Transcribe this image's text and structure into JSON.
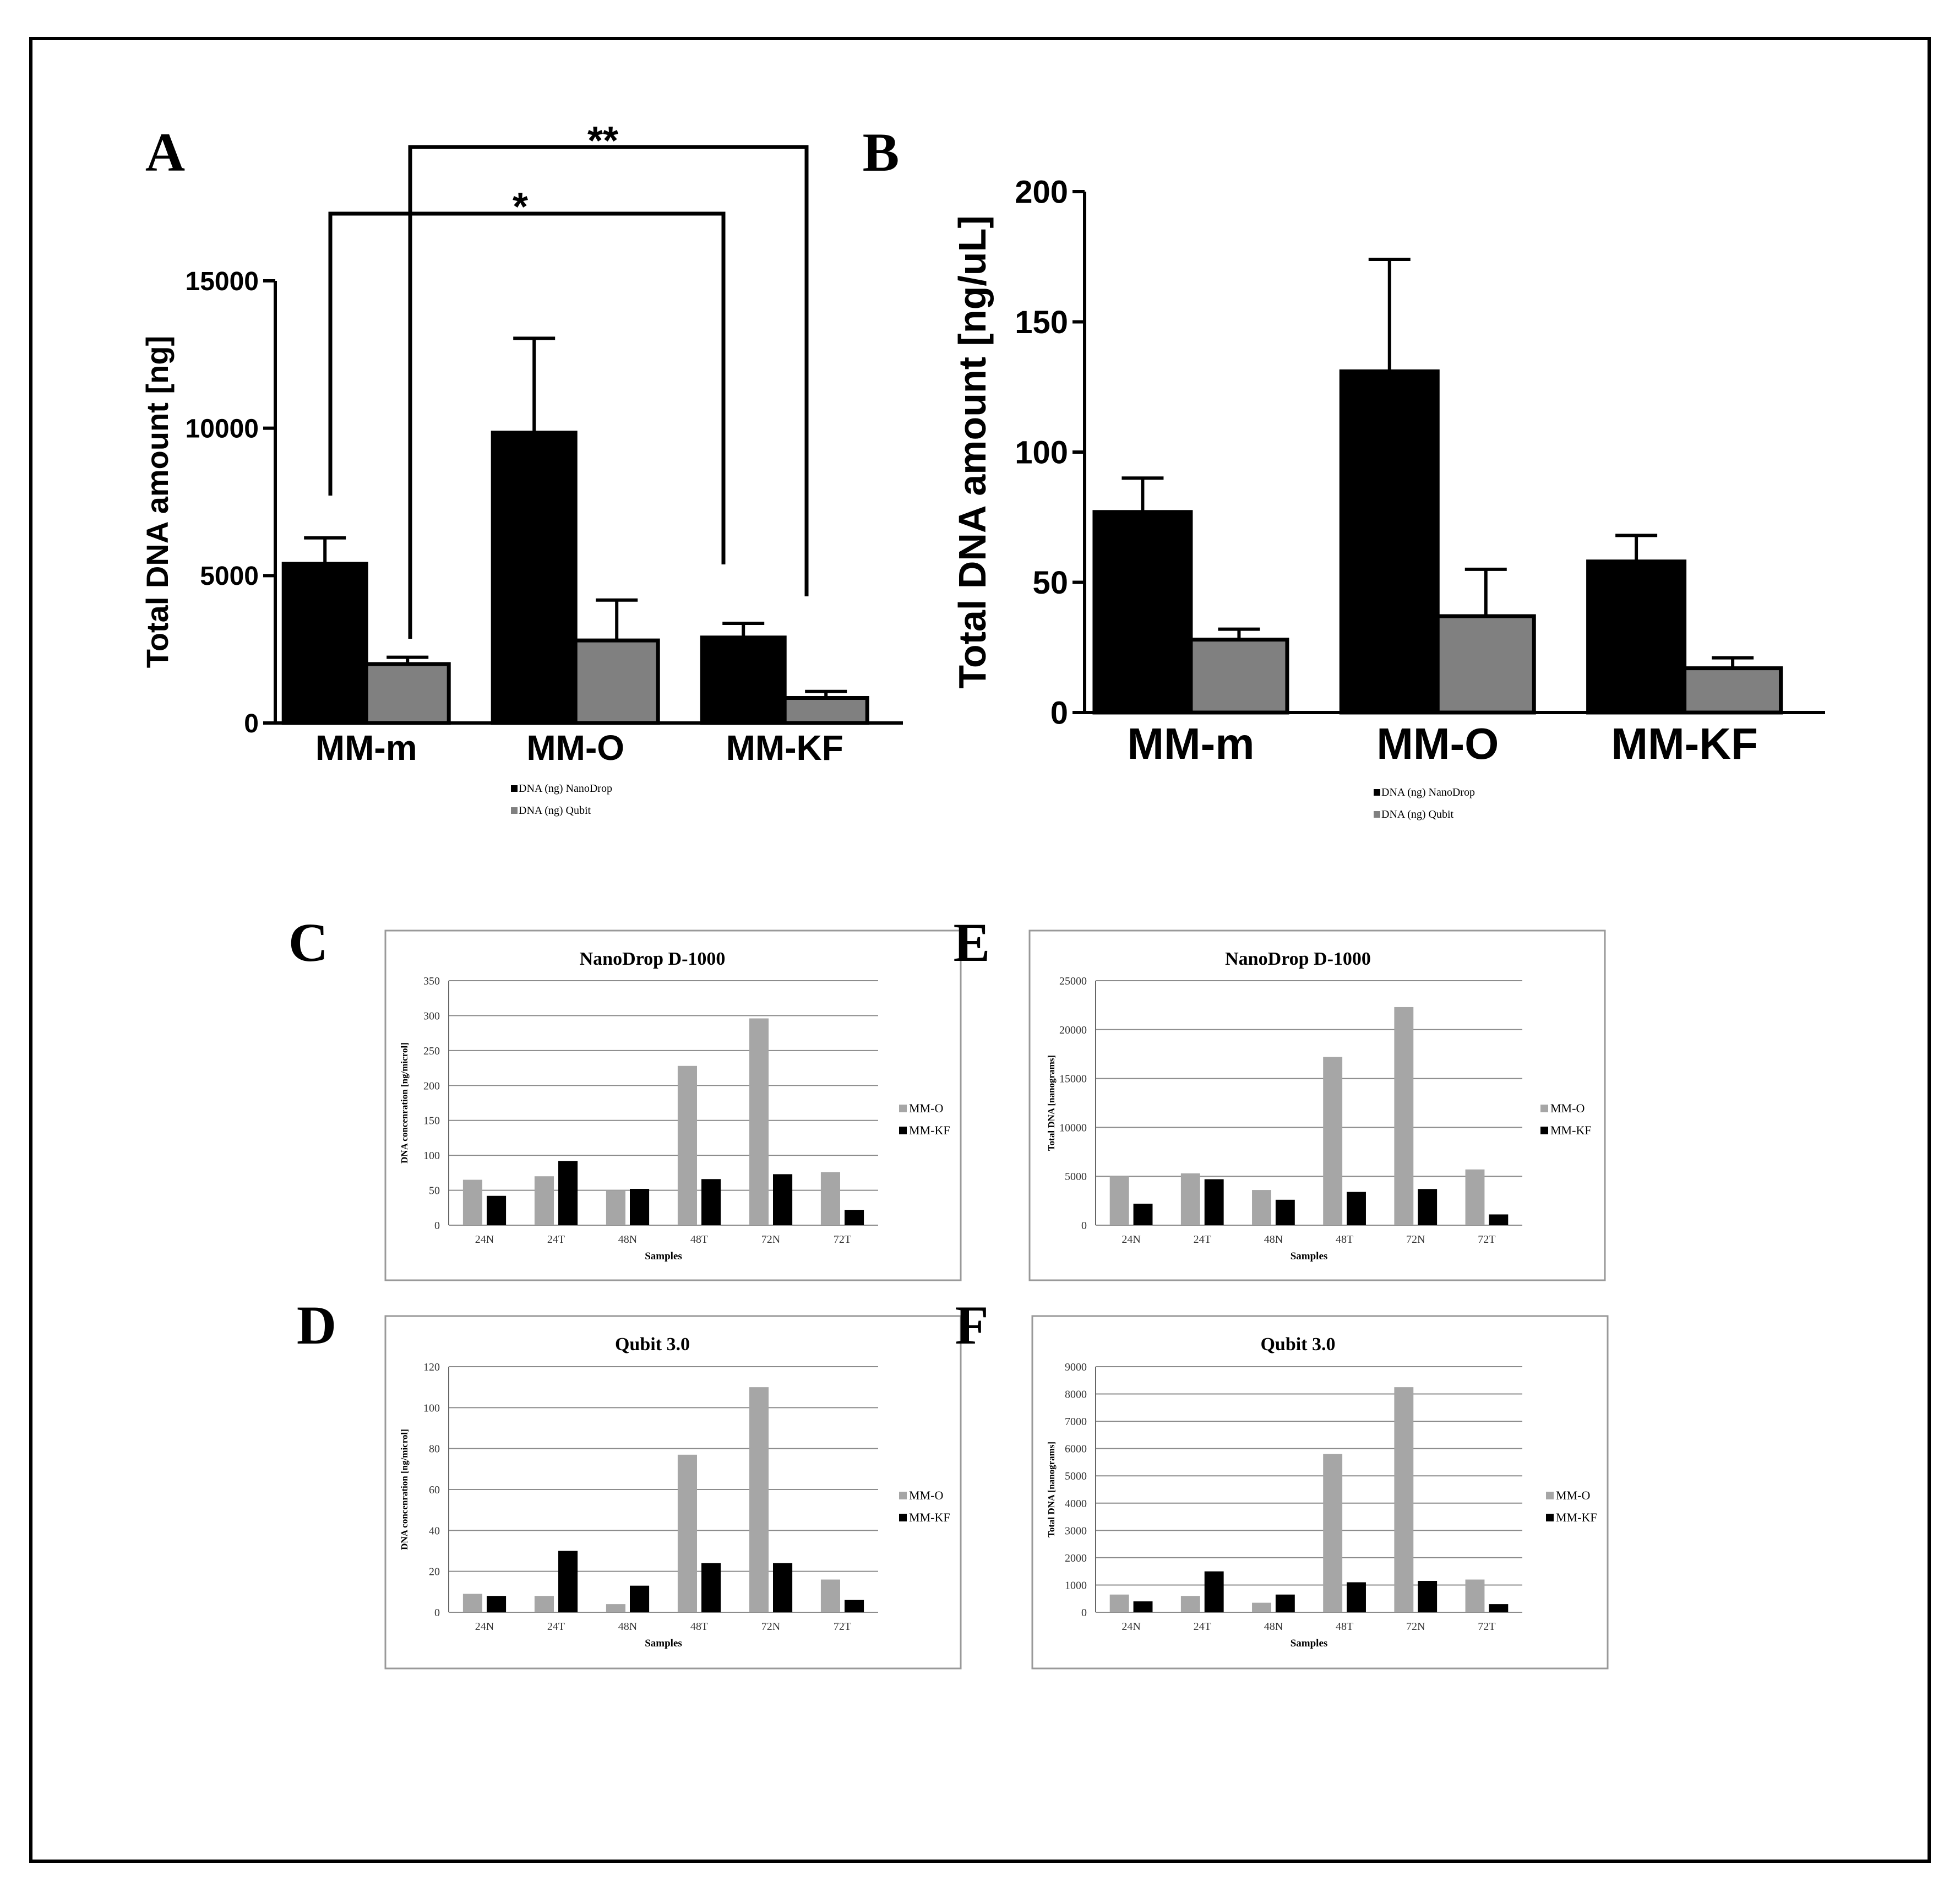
{
  "chart_data": [
    {
      "id": "A",
      "panel_letter": "A",
      "type": "bar",
      "title": "",
      "xlabel": "",
      "ylabel": "Total DNA amount [ng]",
      "ylim": [
        0,
        15000
      ],
      "yticks": [
        "0",
        "5000",
        "10000",
        "15000"
      ],
      "categories": [
        "MM-m",
        "MM-O",
        "MM-KF"
      ],
      "series": [
        {
          "name": "DNA (ng) NanoDrop",
          "color": "#000000",
          "values": [
            5400,
            9850,
            2900
          ],
          "errors": [
            880,
            3200,
            480
          ]
        },
        {
          "name": "DNA (ng) Qubit",
          "color": "#808080",
          "values": [
            2000,
            2800,
            850
          ],
          "errors": [
            230,
            1370,
            220
          ]
        }
      ],
      "legend_position": "bottom",
      "significance": [
        {
          "label": "*",
          "from": "MM-m",
          "to": "MM-KF"
        },
        {
          "label": "**",
          "from": "MM-m",
          "to": "MM-KF"
        }
      ]
    },
    {
      "id": "B",
      "panel_letter": "B",
      "type": "bar",
      "title": "",
      "xlabel": "",
      "ylabel": "Total DNA amount [ng/uL]",
      "ylim": [
        0,
        200
      ],
      "yticks": [
        "0",
        "50",
        "100",
        "150",
        "200"
      ],
      "categories": [
        "MM-m",
        "MM-O",
        "MM-KF"
      ],
      "series": [
        {
          "name": "DNA (ng) NanoDrop",
          "color": "#000000",
          "values": [
            77,
            131,
            58
          ],
          "errors": [
            13,
            43,
            10
          ]
        },
        {
          "name": "DNA (ng) Qubit",
          "color": "#808080",
          "values": [
            28,
            37,
            17
          ],
          "errors": [
            4,
            18,
            4
          ]
        }
      ],
      "legend_position": "bottom"
    },
    {
      "id": "C",
      "panel_letter": "C",
      "type": "bar",
      "title": "NanoDrop D-1000",
      "xlabel": "Samples",
      "ylabel": "DNA concenration [ng/microl]",
      "ylim": [
        0,
        350
      ],
      "yticks": [
        "0",
        "50",
        "100",
        "150",
        "200",
        "250",
        "300",
        "350"
      ],
      "categories": [
        "24N",
        "24T",
        "48N",
        "48T",
        "72N",
        "72T"
      ],
      "series": [
        {
          "name": "MM-O",
          "color": "#a6a6a6",
          "values": [
            65,
            70,
            50,
            228,
            296,
            76
          ]
        },
        {
          "name": "MM-KF",
          "color": "#000000",
          "values": [
            42,
            92,
            52,
            66,
            73,
            22
          ]
        }
      ],
      "legend_position": "right"
    },
    {
      "id": "E",
      "panel_letter": "E",
      "type": "bar",
      "title": "NanoDrop D-1000",
      "xlabel": "Samples",
      "ylabel": "Total DNA [nanograms]",
      "ylim": [
        0,
        25000
      ],
      "yticks": [
        "0",
        "5000",
        "10000",
        "15000",
        "20000",
        "25000"
      ],
      "categories": [
        "24N",
        "24T",
        "48N",
        "48T",
        "72N",
        "72T"
      ],
      "series": [
        {
          "name": "MM-O",
          "color": "#a6a6a6",
          "values": [
            5000,
            5300,
            3600,
            17200,
            22300,
            5700
          ]
        },
        {
          "name": "MM-KF",
          "color": "#000000",
          "values": [
            2200,
            4700,
            2600,
            3400,
            3700,
            1100
          ]
        }
      ],
      "legend_position": "right"
    },
    {
      "id": "D",
      "panel_letter": "D",
      "type": "bar",
      "title": "Qubit 3.0",
      "xlabel": "Samples",
      "ylabel": "DNA concenration [ng/microl]",
      "ylim": [
        0,
        120
      ],
      "yticks": [
        "0",
        "20",
        "40",
        "60",
        "80",
        "100",
        "120"
      ],
      "categories": [
        "24N",
        "24T",
        "48N",
        "48T",
        "72N",
        "72T"
      ],
      "series": [
        {
          "name": "MM-O",
          "color": "#a6a6a6",
          "values": [
            9,
            8,
            4,
            77,
            110,
            16
          ]
        },
        {
          "name": "MM-KF",
          "color": "#000000",
          "values": [
            8,
            30,
            13,
            24,
            24,
            6
          ]
        }
      ],
      "legend_position": "right"
    },
    {
      "id": "F",
      "panel_letter": "F",
      "type": "bar",
      "title": "Qubit 3.0",
      "xlabel": "Samples",
      "ylabel": "Total DNA [nanograms]",
      "ylim": [
        0,
        9000
      ],
      "yticks": [
        "0",
        "1000",
        "2000",
        "3000",
        "4000",
        "5000",
        "6000",
        "7000",
        "8000",
        "9000"
      ],
      "categories": [
        "24N",
        "24T",
        "48N",
        "48T",
        "72N",
        "72T"
      ],
      "series": [
        {
          "name": "MM-O",
          "color": "#a6a6a6",
          "values": [
            650,
            600,
            350,
            5800,
            8250,
            1200
          ]
        },
        {
          "name": "MM-KF",
          "color": "#000000",
          "values": [
            400,
            1500,
            650,
            1100,
            1150,
            300
          ]
        }
      ],
      "legend_position": "right"
    }
  ]
}
